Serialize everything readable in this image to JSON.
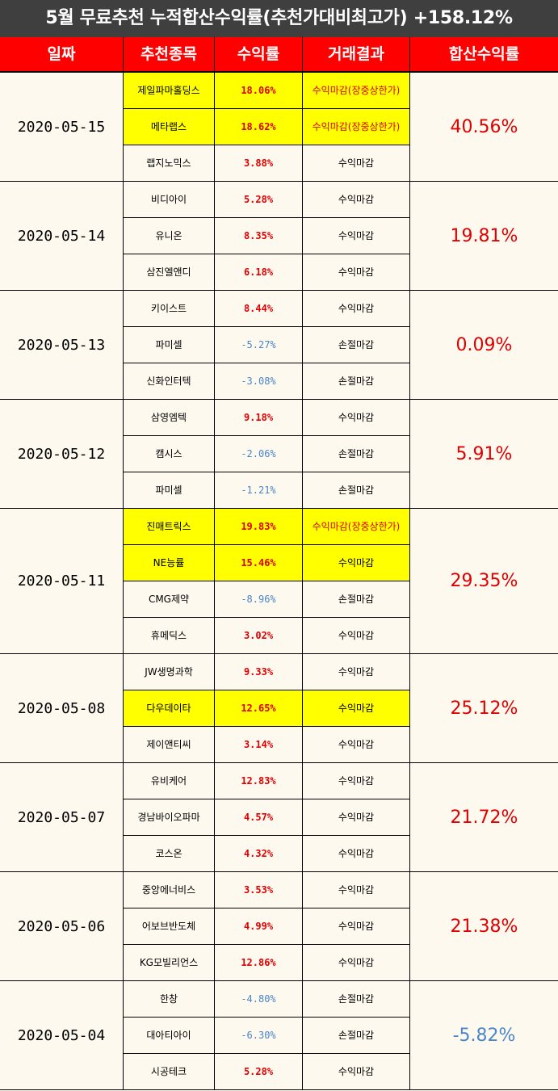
{
  "title": "5월 무료추천 누적합산수익률(추천가대비최고가) +158.12%",
  "headers": [
    "일짜",
    "추천종목",
    "수익률",
    "거래결과",
    "합산수익률"
  ],
  "colors": {
    "title_bg": "#3f3f3f",
    "header_bg": "#ff0000",
    "highlight": "#ffff00",
    "positive": "#e00000",
    "negative": "#4a86c8",
    "body_bg": "#fdf9ef"
  },
  "groups": [
    {
      "date": "2020-05-15",
      "total": "40.56%",
      "total_sign": "pos",
      "rows": [
        {
          "stock": "제일파마홀딩스",
          "ret": "18.06%",
          "result": "수익마감(장중상한가)",
          "sign": "pos",
          "highlight": true,
          "hot": true
        },
        {
          "stock": "메타랩스",
          "ret": "18.62%",
          "result": "수익마감(장중상한가)",
          "sign": "pos",
          "highlight": true,
          "hot": true
        },
        {
          "stock": "랩지노믹스",
          "ret": "3.88%",
          "result": "수익마감",
          "sign": "pos",
          "highlight": false,
          "hot": false
        }
      ]
    },
    {
      "date": "2020-05-14",
      "total": "19.81%",
      "total_sign": "pos",
      "rows": [
        {
          "stock": "비디아이",
          "ret": "5.28%",
          "result": "수익마감",
          "sign": "pos",
          "highlight": false,
          "hot": false
        },
        {
          "stock": "유니온",
          "ret": "8.35%",
          "result": "수익마감",
          "sign": "pos",
          "highlight": false,
          "hot": false
        },
        {
          "stock": "삼진엘앤디",
          "ret": "6.18%",
          "result": "수익마감",
          "sign": "pos",
          "highlight": false,
          "hot": false
        }
      ]
    },
    {
      "date": "2020-05-13",
      "total": "0.09%",
      "total_sign": "pos",
      "rows": [
        {
          "stock": "키이스트",
          "ret": "8.44%",
          "result": "수익마감",
          "sign": "pos",
          "highlight": false,
          "hot": false
        },
        {
          "stock": "파미셀",
          "ret": "-5.27%",
          "result": "손절마감",
          "sign": "neg",
          "highlight": false,
          "hot": false
        },
        {
          "stock": "신화인터텍",
          "ret": "-3.08%",
          "result": "손절마감",
          "sign": "neg",
          "highlight": false,
          "hot": false
        }
      ]
    },
    {
      "date": "2020-05-12",
      "total": "5.91%",
      "total_sign": "pos",
      "rows": [
        {
          "stock": "삼영엠텍",
          "ret": "9.18%",
          "result": "수익마감",
          "sign": "pos",
          "highlight": false,
          "hot": false
        },
        {
          "stock": "캠시스",
          "ret": "-2.06%",
          "result": "손절마감",
          "sign": "neg",
          "highlight": false,
          "hot": false
        },
        {
          "stock": "파미셀",
          "ret": "-1.21%",
          "result": "손절마감",
          "sign": "neg",
          "highlight": false,
          "hot": false
        }
      ]
    },
    {
      "date": "2020-05-11",
      "total": "29.35%",
      "total_sign": "pos",
      "rows": [
        {
          "stock": "진매트릭스",
          "ret": "19.83%",
          "result": "수익마감(장중상한가)",
          "sign": "pos",
          "highlight": true,
          "hot": true
        },
        {
          "stock": "NE능률",
          "ret": "15.46%",
          "result": "수익마감",
          "sign": "pos",
          "highlight": true,
          "hot": false
        },
        {
          "stock": "CMG제약",
          "ret": "-8.96%",
          "result": "손절마감",
          "sign": "neg",
          "highlight": false,
          "hot": false
        },
        {
          "stock": "휴메딕스",
          "ret": "3.02%",
          "result": "수익마감",
          "sign": "pos",
          "highlight": false,
          "hot": false
        }
      ]
    },
    {
      "date": "2020-05-08",
      "total": "25.12%",
      "total_sign": "pos",
      "rows": [
        {
          "stock": "JW생명과학",
          "ret": "9.33%",
          "result": "수익마감",
          "sign": "pos",
          "highlight": false,
          "hot": false
        },
        {
          "stock": "다우데이타",
          "ret": "12.65%",
          "result": "수익마감",
          "sign": "pos",
          "highlight": true,
          "hot": false
        },
        {
          "stock": "제이앤티씨",
          "ret": "3.14%",
          "result": "수익마감",
          "sign": "pos",
          "highlight": false,
          "hot": false
        }
      ]
    },
    {
      "date": "2020-05-07",
      "total": "21.72%",
      "total_sign": "pos",
      "rows": [
        {
          "stock": "유비케어",
          "ret": "12.83%",
          "result": "수익마감",
          "sign": "pos",
          "highlight": false,
          "hot": false
        },
        {
          "stock": "경남바이오파마",
          "ret": "4.57%",
          "result": "수익마감",
          "sign": "pos",
          "highlight": false,
          "hot": false
        },
        {
          "stock": "코스온",
          "ret": "4.32%",
          "result": "수익마감",
          "sign": "pos",
          "highlight": false,
          "hot": false
        }
      ]
    },
    {
      "date": "2020-05-06",
      "total": "21.38%",
      "total_sign": "pos",
      "rows": [
        {
          "stock": "중앙에너비스",
          "ret": "3.53%",
          "result": "수익마감",
          "sign": "pos",
          "highlight": false,
          "hot": false
        },
        {
          "stock": "어보브반도체",
          "ret": "4.99%",
          "result": "수익마감",
          "sign": "pos",
          "highlight": false,
          "hot": false
        },
        {
          "stock": "KG모빌리언스",
          "ret": "12.86%",
          "result": "수익마감",
          "sign": "pos",
          "highlight": false,
          "hot": false
        }
      ]
    },
    {
      "date": "2020-05-04",
      "total": "-5.82%",
      "total_sign": "neg",
      "rows": [
        {
          "stock": "한창",
          "ret": "-4.80%",
          "result": "손절마감",
          "sign": "neg",
          "highlight": false,
          "hot": false
        },
        {
          "stock": "대아티아이",
          "ret": "-6.30%",
          "result": "손절마감",
          "sign": "neg",
          "highlight": false,
          "hot": false
        },
        {
          "stock": "시공테크",
          "ret": "5.28%",
          "result": "수익마감",
          "sign": "pos",
          "highlight": false,
          "hot": false
        }
      ]
    }
  ]
}
